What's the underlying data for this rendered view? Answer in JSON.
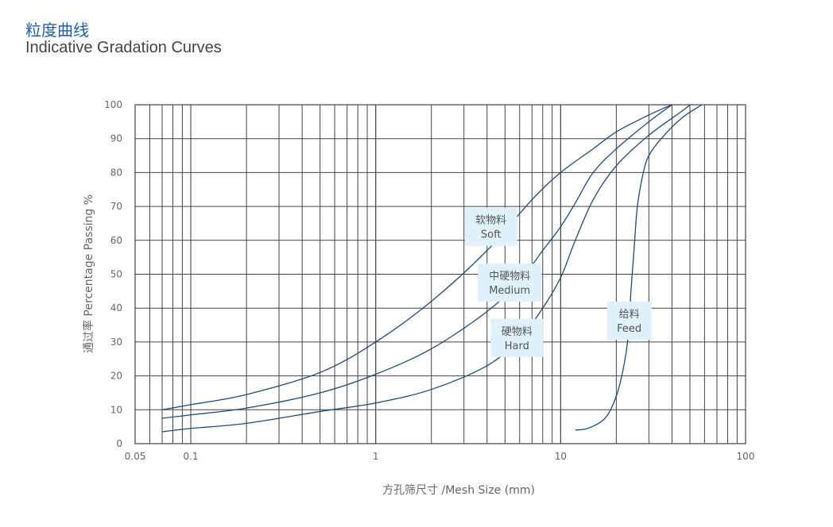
{
  "header": {
    "title_zh": "粒度曲线",
    "title_en": "Indicative Gradation Curves"
  },
  "colors": {
    "title": "#1d5fa8",
    "curve": "#1f4a7a",
    "grid": "#444444",
    "callout_bg": "#dff1fa"
  },
  "chart_data": {
    "type": "line",
    "xscale": "log",
    "xlim": [
      0.05,
      100
    ],
    "ylim": [
      0,
      100
    ],
    "xlabel": "方孔筛尺寸 /Mesh Size (mm)",
    "ylabel": "通过率 Percentage Passing %",
    "xticks": [
      {
        "value": 0.05,
        "label": "0.05"
      },
      {
        "value": 0.1,
        "label": "0.1"
      },
      {
        "value": 1,
        "label": "1"
      },
      {
        "value": 10,
        "label": "10"
      },
      {
        "value": 100,
        "label": "100"
      }
    ],
    "yticks": [
      0,
      10,
      20,
      30,
      40,
      50,
      60,
      70,
      80,
      90,
      100
    ],
    "grid": true,
    "series": [
      {
        "name": "软物料 Soft",
        "label_zh": "软物料",
        "label_en": "Soft",
        "label_at": [
          4.2,
          64
        ],
        "points": [
          [
            0.07,
            10
          ],
          [
            0.1,
            11.5
          ],
          [
            0.2,
            14.5
          ],
          [
            0.5,
            21
          ],
          [
            1,
            30
          ],
          [
            2,
            42
          ],
          [
            4,
            57
          ],
          [
            7,
            72
          ],
          [
            10,
            80
          ],
          [
            15,
            87
          ],
          [
            20,
            92
          ],
          [
            30,
            97
          ],
          [
            40,
            100
          ]
        ]
      },
      {
        "name": "中硬物料 Medium",
        "label_zh": "中硬物料",
        "label_en": "Medium",
        "label_at": [
          5.3,
          47.5
        ],
        "points": [
          [
            0.07,
            7.5
          ],
          [
            0.1,
            8.5
          ],
          [
            0.2,
            10.5
          ],
          [
            0.5,
            15
          ],
          [
            1,
            20.5
          ],
          [
            2,
            28
          ],
          [
            4,
            39
          ],
          [
            6,
            48
          ],
          [
            8,
            57
          ],
          [
            10,
            64
          ],
          [
            12,
            71
          ],
          [
            15,
            80
          ],
          [
            20,
            87
          ],
          [
            30,
            95
          ],
          [
            40,
            100
          ]
        ]
      },
      {
        "name": "硬物料 Hard",
        "label_zh": "硬物料",
        "label_en": "Hard",
        "label_at": [
          5.8,
          31.2
        ],
        "points": [
          [
            0.07,
            3.5
          ],
          [
            0.1,
            4.5
          ],
          [
            0.2,
            6
          ],
          [
            0.5,
            9.5
          ],
          [
            1,
            12
          ],
          [
            2,
            16
          ],
          [
            4,
            23
          ],
          [
            6,
            31
          ],
          [
            8,
            40
          ],
          [
            10,
            49
          ],
          [
            12,
            60
          ],
          [
            15,
            72
          ],
          [
            20,
            82
          ],
          [
            30,
            91
          ],
          [
            45,
            98
          ],
          [
            50,
            100
          ]
        ]
      },
      {
        "name": "给料 Feed",
        "label_zh": "给料",
        "label_en": "Feed",
        "label_at": [
          23.5,
          36.3
        ],
        "points": [
          [
            12,
            4
          ],
          [
            14,
            4.5
          ],
          [
            17,
            7
          ],
          [
            19,
            11
          ],
          [
            21,
            18
          ],
          [
            23,
            30
          ],
          [
            24,
            45
          ],
          [
            25,
            58
          ],
          [
            26,
            70
          ],
          [
            28,
            80
          ],
          [
            30,
            85
          ],
          [
            35,
            90
          ],
          [
            45,
            96
          ],
          [
            58,
            100
          ]
        ]
      }
    ]
  }
}
